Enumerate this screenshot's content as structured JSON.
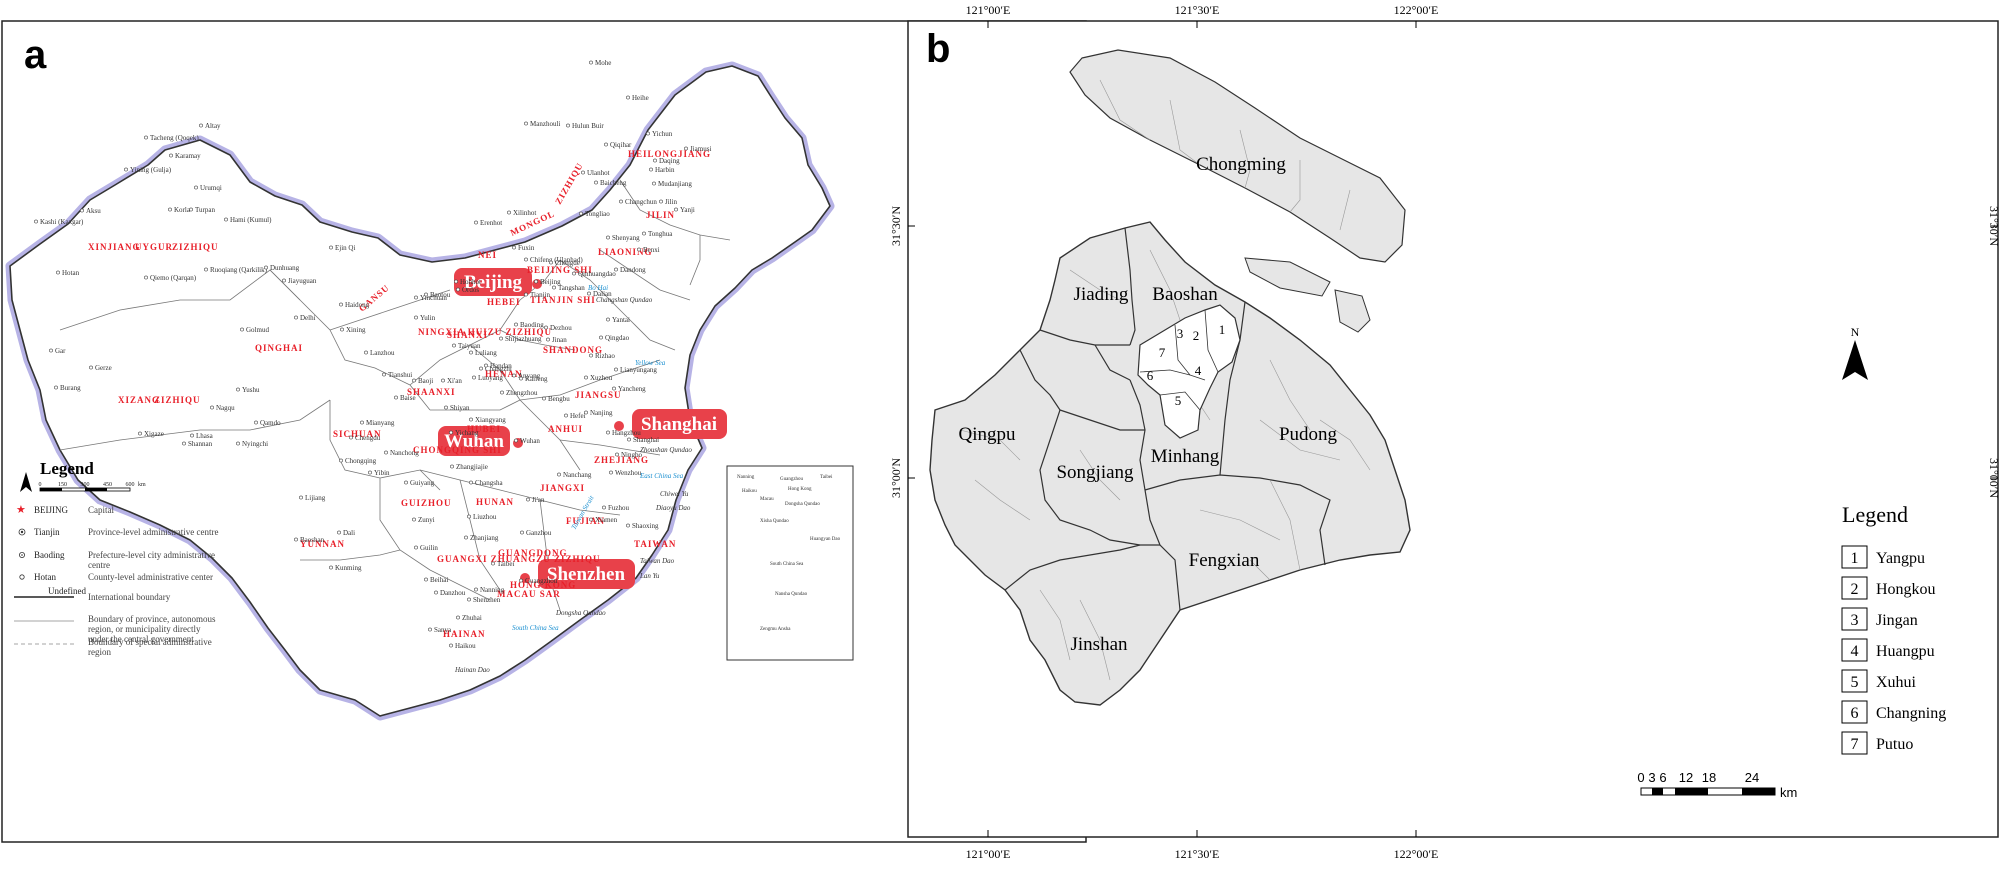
{
  "panel_a": {
    "letter": "a",
    "callouts": [
      {
        "key": "beijing",
        "label": "Beijing"
      },
      {
        "key": "shanghai",
        "label": "Shanghai"
      },
      {
        "key": "wuhan",
        "label": "Wuhan"
      },
      {
        "key": "shenzhen",
        "label": "Shenzhen"
      }
    ],
    "provinces": [
      "XINJIANG",
      "UYGUR",
      "ZIZHIQU",
      "QINGHAI",
      "XIZANG",
      "ZIZHIQU",
      "NEI",
      "MONGOL",
      "ZIZHIQU",
      "HEILONGJIANG",
      "JILIN",
      "LIAONING",
      "BEIJING SHI",
      "TIANJIN SHI",
      "HEBEI",
      "SHANXI",
      "SHANDONG",
      "GANSU",
      "NINGXIA HUIZU ZIZHIQU",
      "SHAANXI",
      "HENAN",
      "JIANGSU",
      "ANHUI",
      "SICHUAN",
      "CHONGQING SHI",
      "HUBEI",
      "ZHEJIANG",
      "GUIZHOU",
      "HUNAN",
      "JIANGXI",
      "FUJIAN",
      "YUNNAN",
      "GUANGXI ZHUANGZU ZIZHIQU",
      "GUANGDONG",
      "TAIWAN",
      "HAINAN",
      "MACAU SAR",
      "HONG KONG"
    ],
    "cities": [
      "Altay",
      "Tacheng (Qoqek)",
      "Karamay",
      "Yining (Gulja)",
      "Urumqi",
      "Turpan",
      "Hami (Kumul)",
      "Kashi (Kaxgar)",
      "Aksu",
      "Korla",
      "Hotan",
      "Qiemo (Qarqan)",
      "Ruoqiang (Qarkilik)",
      "Ejin Qi",
      "Dunhuang",
      "Jiayuguan",
      "Golmud",
      "Delhi",
      "Xining",
      "Lanzhou",
      "Yinchuan",
      "Haidong",
      "Gar",
      "Gerze",
      "Burang",
      "Nagqu",
      "Lhasa",
      "Xigaze",
      "Shannan",
      "Nyingchi",
      "Qamdo",
      "Yushu",
      "Mohe",
      "Heihe",
      "Hulun Buir",
      "Manzhouli",
      "Yichun",
      "Jiamusi",
      "Qiqihar",
      "Harbin",
      "Daqing",
      "Mudanjiang",
      "Changchun",
      "Jilin",
      "Yanji",
      "Tonghua",
      "Shenyang",
      "Dandong",
      "Benxi",
      "Erenhot",
      "Xilinhot",
      "Chifeng (Ulanhad)",
      "Fuxin",
      "Tongliao",
      "Ulanhot",
      "Baicheng",
      "Hohhot",
      "Baotou",
      "Ordos",
      "Yulin",
      "Beijing",
      "Tianjin",
      "Chengde",
      "Qinhuangdao",
      "Tangshan",
      "Dalian",
      "Baoding",
      "Shijiazhuang",
      "Taiyuan",
      "Luliang",
      "Changzhi",
      "Jinan",
      "Qingdao",
      "Yantai",
      "Dezhou",
      "Handan",
      "Anyang",
      "Rizhao",
      "Xi'an",
      "Baoji",
      "Tianshui",
      "Zhengzhou",
      "Kaifeng",
      "Luoyang",
      "Xuzhou",
      "Lianyungang",
      "Yancheng",
      "Nanjing",
      "Hefei",
      "Bengbu",
      "Wuhan",
      "Yichang",
      "Shiyan",
      "Xiangyang",
      "Chengdu",
      "Mianyang",
      "Yibin",
      "Chongqing",
      "Nanchong",
      "Guiyang",
      "Zunyi",
      "Kunming",
      "Dali",
      "Lijiang",
      "Baoshan",
      "Changsha",
      "Zhangjiajie",
      "Nanchang",
      "Ji'an",
      "Ganzhou",
      "Fuzhou",
      "Xiamen",
      "Wenzhou",
      "Hangzhou",
      "Shanghai",
      "Ningbo",
      "Shaoxing",
      "Taibei",
      "Guangzhou",
      "Shenzhen",
      "Nanning",
      "Zhuhai",
      "Haikou",
      "Sanya",
      "Danzhou",
      "Beihai",
      "Zhanjiang",
      "Liuzhou",
      "Guilin",
      "Baise"
    ],
    "seas": [
      "Bo Hai",
      "Yellow Sea",
      "East China Sea",
      "South China Sea",
      "Taiwan Strait"
    ],
    "islands": [
      "Changshan Qundao",
      "Zhoushan Qundao",
      "Diaoyu Dao",
      "Chiwei Yu",
      "Taiwan Dao",
      "Lan Yu",
      "Dongsha Qundao",
      "Hainan Dao"
    ],
    "legend": {
      "title": "Legend",
      "scale_labels": [
        "0",
        "150",
        "300",
        "450",
        "600"
      ],
      "scale_unit": "km",
      "items": [
        {
          "sym": "star",
          "name": "BEIJING",
          "desc": "Capital"
        },
        {
          "sym": "double-circle",
          "name": "Tianjin",
          "desc": "Province-level administrative centre"
        },
        {
          "sym": "circle-dot",
          "name": "Baoding",
          "desc": "Prefecture-level city administrative centre"
        },
        {
          "sym": "circle",
          "name": "Hotan",
          "desc": "County-level administrative center"
        },
        {
          "sym": "thick-line",
          "name": "Undefined",
          "desc": "International boundary"
        },
        {
          "sym": "thin-line",
          "name": "",
          "desc": "Boundary of province, autonomous region, or municipality directly under the central government"
        },
        {
          "sym": "dashed-line",
          "name": "",
          "desc": "Boundary of special adminstrative region"
        }
      ]
    },
    "inset_labels": [
      "Nanning",
      "Guangzhou",
      "Taibei",
      "Haikou",
      "Hong Kong",
      "Macau",
      "Dongsha Qundao",
      "Xisha Qundao",
      "South China Sea",
      "Nansha Qundao",
      "Zengmu Ansha",
      "Huangyan Dao"
    ]
  },
  "panel_b": {
    "letter": "b",
    "top_ticks": [
      "121°00′E",
      "121°30′E",
      "122°00′E"
    ],
    "bottom_ticks": [
      "121°00′E",
      "121°30′E",
      "122°00′E"
    ],
    "left_ticks": [
      "31°30′N",
      "31°00′N"
    ],
    "right_ticks": [
      "31°30′N",
      "31°00′N"
    ],
    "districts": [
      "Chongming",
      "Jiading",
      "Baoshan",
      "Qingpu",
      "Songjiang",
      "Minhang",
      "Pudong",
      "Fengxian",
      "Jinshan"
    ],
    "central_numbers": [
      "1",
      "2",
      "3",
      "4",
      "5",
      "6",
      "7"
    ],
    "north_label": "N",
    "legend": {
      "title": "Legend",
      "items": [
        {
          "num": "1",
          "name": "Yangpu"
        },
        {
          "num": "2",
          "name": "Hongkou"
        },
        {
          "num": "3",
          "name": "Jingan"
        },
        {
          "num": "4",
          "name": "Huangpu"
        },
        {
          "num": "5",
          "name": "Xuhui"
        },
        {
          "num": "6",
          "name": "Changning"
        },
        {
          "num": "7",
          "name": "Putuo"
        }
      ]
    },
    "scale": {
      "labels": [
        "0",
        "3",
        "6",
        "12",
        "18",
        "24"
      ],
      "unit": "km"
    }
  },
  "colors": {
    "callout": "#e8414a",
    "province_label": "#e8202a",
    "land_b": "#e6e6e6",
    "water": "#1a8fd0",
    "coast_glow": "#b7b3e6"
  }
}
